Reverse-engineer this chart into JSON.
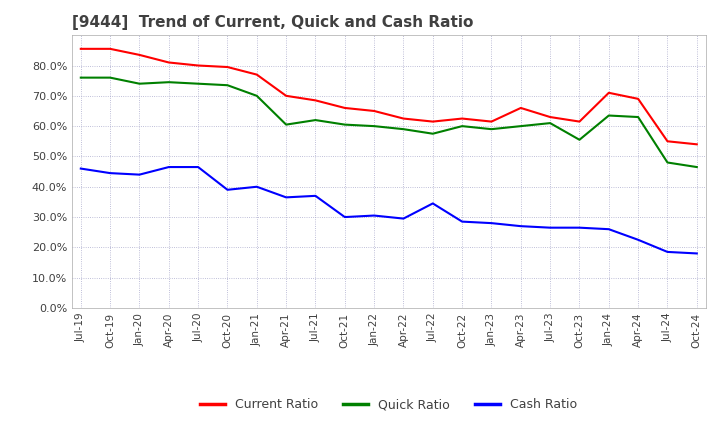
{
  "title": "[9444]  Trend of Current, Quick and Cash Ratio",
  "x_labels": [
    "Jul-19",
    "Oct-19",
    "Jan-20",
    "Apr-20",
    "Jul-20",
    "Oct-20",
    "Jan-21",
    "Apr-21",
    "Jul-21",
    "Oct-21",
    "Jan-22",
    "Apr-22",
    "Jul-22",
    "Oct-22",
    "Jan-23",
    "Apr-23",
    "Jul-23",
    "Oct-23",
    "Jan-24",
    "Apr-24",
    "Jul-24",
    "Oct-24"
  ],
  "current_ratio": [
    0.855,
    0.855,
    0.835,
    0.81,
    0.8,
    0.795,
    0.77,
    0.7,
    0.685,
    0.66,
    0.65,
    0.625,
    0.615,
    0.625,
    0.615,
    0.66,
    0.63,
    0.615,
    0.71,
    0.69,
    0.55,
    0.54
  ],
  "quick_ratio": [
    0.76,
    0.76,
    0.74,
    0.745,
    0.74,
    0.735,
    0.7,
    0.605,
    0.62,
    0.605,
    0.6,
    0.59,
    0.575,
    0.6,
    0.59,
    0.6,
    0.61,
    0.555,
    0.635,
    0.63,
    0.48,
    0.465
  ],
  "cash_ratio": [
    0.46,
    0.445,
    0.44,
    0.465,
    0.465,
    0.39,
    0.4,
    0.365,
    0.37,
    0.3,
    0.305,
    0.295,
    0.345,
    0.285,
    0.28,
    0.27,
    0.265,
    0.265,
    0.26,
    0.225,
    0.185,
    0.18
  ],
  "ylim": [
    0.0,
    0.9
  ],
  "yticks": [
    0.0,
    0.1,
    0.2,
    0.3,
    0.4,
    0.5,
    0.6,
    0.7,
    0.8
  ],
  "current_color": "#FF0000",
  "quick_color": "#008000",
  "cash_color": "#0000FF",
  "bg_color": "#FFFFFF",
  "plot_bg_color": "#FFFFFF",
  "grid_color": "#AAAACC",
  "title_color": "#404040",
  "title_fontsize": 11
}
